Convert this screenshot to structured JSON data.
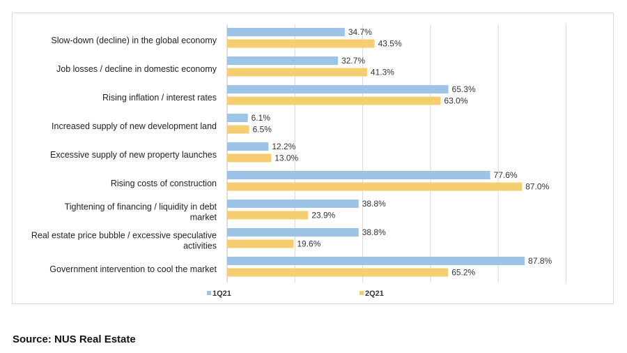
{
  "chart_data": {
    "type": "bar",
    "orientation": "horizontal",
    "categories": [
      "Slow-down (decline) in the global economy",
      "Job losses / decline in domestic economy",
      "Rising inflation / interest rates",
      "Increased supply of new development land",
      "Excessive supply of new property launches",
      "Rising costs of construction",
      "Tightening of financing / liquidity in debt market",
      "Real estate price bubble / excessive speculative activities",
      "Government intervention to cool the market"
    ],
    "label_lines": [
      [
        "Slow-down (decline) in the global economy"
      ],
      [
        "Job losses / decline in domestic economy"
      ],
      [
        "Rising inflation / interest rates"
      ],
      [
        "Increased supply of new development land"
      ],
      [
        "Excessive supply of new property launches"
      ],
      [
        "Rising costs of construction"
      ],
      [
        "Tightening of financing / liquidity in debt",
        "market"
      ],
      [
        "Real estate price bubble / excessive speculative",
        "activities"
      ],
      [
        "Government intervention to cool the market"
      ]
    ],
    "series": [
      {
        "name": "1Q21",
        "color": "#9DC3E6",
        "values": [
          34.7,
          32.7,
          65.3,
          6.1,
          12.2,
          77.6,
          38.8,
          38.8,
          87.8
        ]
      },
      {
        "name": "2Q21",
        "color": "#F5CE72",
        "values": [
          43.5,
          41.3,
          63.0,
          6.5,
          13.0,
          87.0,
          23.9,
          19.6,
          65.2
        ]
      }
    ],
    "xlim": [
      0,
      100
    ],
    "grid_step": 20,
    "grid": true,
    "legend_position": "bottom",
    "value_suffix": "%"
  },
  "source": "Source: NUS Real Estate"
}
